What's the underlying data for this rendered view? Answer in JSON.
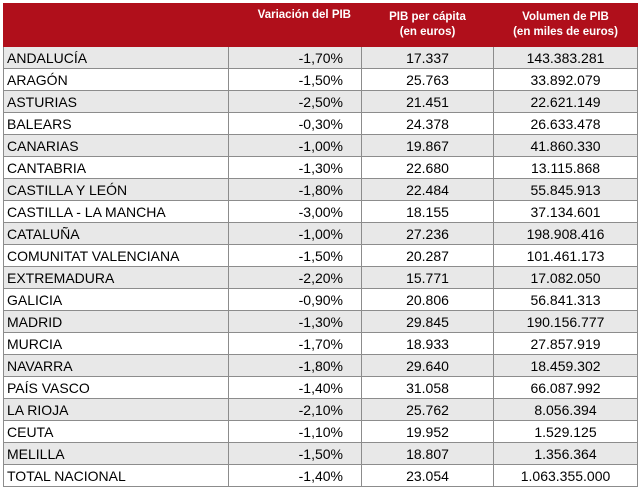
{
  "headers": {
    "region": "",
    "variation": "Variación del PIB",
    "per_capita_line1": "PIB per cápita",
    "per_capita_line2": "(en euros)",
    "volume_line1": "Volumen de PIB",
    "volume_line2": "(en miles de euros)"
  },
  "rows": [
    {
      "region": "ANDALUCÍA",
      "variation": "-1,70%",
      "per_capita": "17.337",
      "volume": "143.383.281"
    },
    {
      "region": "ARAGÓN",
      "variation": "-1,50%",
      "per_capita": "25.763",
      "volume": "33.892.079"
    },
    {
      "region": "ASTURIAS",
      "variation": "-2,50%",
      "per_capita": "21.451",
      "volume": "22.621.149"
    },
    {
      "region": "BALEARS",
      "variation": "-0,30%",
      "per_capita": "24.378",
      "volume": "26.633.478"
    },
    {
      "region": "CANARIAS",
      "variation": "-1,00%",
      "per_capita": "19.867",
      "volume": "41.860.330"
    },
    {
      "region": "CANTABRIA",
      "variation": "-1,30%",
      "per_capita": "22.680",
      "volume": "13.115.868"
    },
    {
      "region": "CASTILLA Y LEÓN",
      "variation": "-1,80%",
      "per_capita": "22.484",
      "volume": "55.845.913"
    },
    {
      "region": "CASTILLA - LA MANCHA",
      "variation": "-3,00%",
      "per_capita": "18.155",
      "volume": "37.134.601"
    },
    {
      "region": "CATALUÑA",
      "variation": "-1,00%",
      "per_capita": "27.236",
      "volume": "198.908.416"
    },
    {
      "region": "COMUNITAT VALENCIANA",
      "variation": "-1,50%",
      "per_capita": "20.287",
      "volume": "101.461.173"
    },
    {
      "region": "EXTREMADURA",
      "variation": "-2,20%",
      "per_capita": "15.771",
      "volume": "17.082.050"
    },
    {
      "region": "GALICIA",
      "variation": "-0,90%",
      "per_capita": "20.806",
      "volume": "56.841.313"
    },
    {
      "region": "MADRID",
      "variation": "-1,30%",
      "per_capita": "29.845",
      "volume": "190.156.777"
    },
    {
      "region": "MURCIA",
      "variation": "-1,70%",
      "per_capita": "18.933",
      "volume": "27.857.919"
    },
    {
      "region": "NAVARRA",
      "variation": "-1,80%",
      "per_capita": "29.640",
      "volume": "18.459.302"
    },
    {
      "region": "PAÍS VASCO",
      "variation": "-1,40%",
      "per_capita": "31.058",
      "volume": "66.087.992"
    },
    {
      "region": "LA RIOJA",
      "variation": "-2,10%",
      "per_capita": "25.762",
      "volume": "8.056.394"
    },
    {
      "region": "CEUTA",
      "variation": "-1,10%",
      "per_capita": "19.952",
      "volume": "1.529.125"
    },
    {
      "region": "MELILLA",
      "variation": "-1,50%",
      "per_capita": "18.807",
      "volume": "1.356.364"
    },
    {
      "region": "TOTAL NACIONAL",
      "variation": "-1,40%",
      "per_capita": "23.054",
      "volume": "1.063.355.000"
    }
  ],
  "colors": {
    "header_background": "#b00f1b",
    "header_text": "#ffffff",
    "row_stripe": "#e8e8e8",
    "grid_line": "#8c8c8c"
  }
}
